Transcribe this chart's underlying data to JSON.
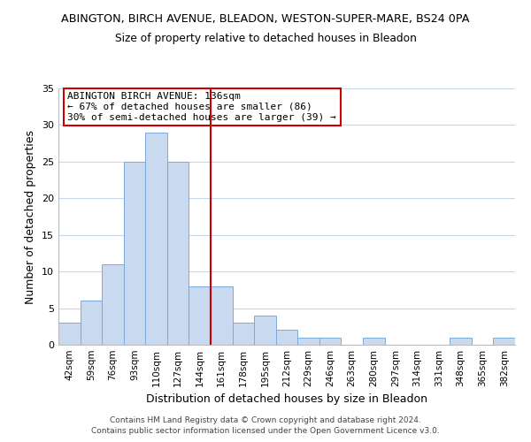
{
  "title": "ABINGTON, BIRCH AVENUE, BLEADON, WESTON-SUPER-MARE, BS24 0PA",
  "subtitle": "Size of property relative to detached houses in Bleadon",
  "xlabel": "Distribution of detached houses by size in Bleadon",
  "ylabel": "Number of detached properties",
  "bar_color": "#c8d9f0",
  "bar_edge_color": "#7aaadc",
  "categories": [
    "42sqm",
    "59sqm",
    "76sqm",
    "93sqm",
    "110sqm",
    "127sqm",
    "144sqm",
    "161sqm",
    "178sqm",
    "195sqm",
    "212sqm",
    "229sqm",
    "246sqm",
    "263sqm",
    "280sqm",
    "297sqm",
    "314sqm",
    "331sqm",
    "348sqm",
    "365sqm",
    "382sqm"
  ],
  "values": [
    3,
    6,
    11,
    25,
    29,
    25,
    8,
    8,
    3,
    4,
    2,
    1,
    1,
    0,
    1,
    0,
    0,
    0,
    1,
    0,
    1
  ],
  "vline_x": 6.5,
  "vline_color": "#cc0000",
  "annotation_text": "ABINGTON BIRCH AVENUE: 136sqm\n← 67% of detached houses are smaller (86)\n30% of semi-detached houses are larger (39) →",
  "annotation_box_color": "#ffffff",
  "annotation_box_edge": "#cc0000",
  "ylim": [
    0,
    35
  ],
  "yticks": [
    0,
    5,
    10,
    15,
    20,
    25,
    30,
    35
  ],
  "footer1": "Contains HM Land Registry data © Crown copyright and database right 2024.",
  "footer2": "Contains public sector information licensed under the Open Government Licence v3.0.",
  "bg_color": "#ffffff",
  "grid_color": "#c8d8ec"
}
